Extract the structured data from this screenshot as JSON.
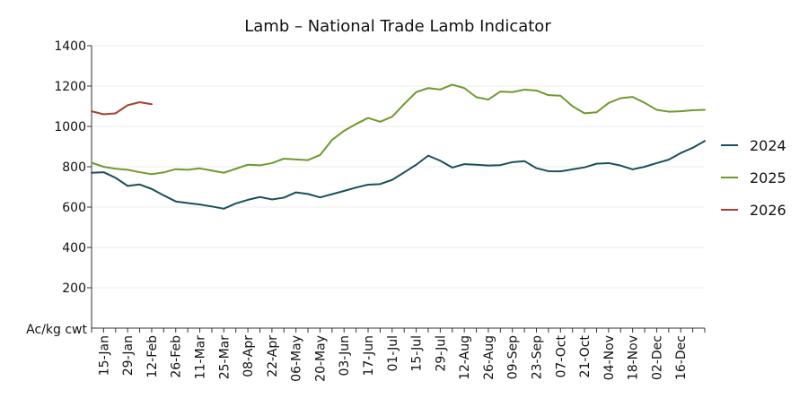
{
  "chart_data": {
    "type": "line",
    "title": "Lamb – National Trade Lamb Indicator",
    "ylabel": "Ac/kg cwt",
    "ylim": [
      0,
      1400
    ],
    "yticks": [
      200,
      400,
      600,
      800,
      1000,
      1200,
      1400
    ],
    "x_categories": [
      "15-Jan",
      "29-Jan",
      "12-Feb",
      "26-Feb",
      "11-Mar",
      "25-Mar",
      "08-Apr",
      "22-Apr",
      "06-May",
      "20-May",
      "03-Jun",
      "17-Jun",
      "01-Jul",
      "15-Jul",
      "29-Jul",
      "12-Aug",
      "26-Aug",
      "09-Sep",
      "23-Sep",
      "07-Oct",
      "21-Oct",
      "04-Nov",
      "18-Nov",
      "02-Dec",
      "16-Dec"
    ],
    "x_week_start": 1,
    "x_week_end": 52,
    "x_tick_weeks": [
      2,
      4,
      6,
      8,
      10,
      12,
      14,
      16,
      18,
      20,
      22,
      24,
      26,
      28,
      30,
      32,
      34,
      36,
      38,
      40,
      42,
      44,
      46,
      48,
      50
    ],
    "legend_position": "right",
    "series": [
      {
        "name": "2024",
        "color": "#1a4f5a",
        "x": [
          1,
          2,
          3,
          4,
          5,
          6,
          7,
          8,
          9,
          10,
          11,
          12,
          13,
          14,
          15,
          16,
          17,
          18,
          19,
          20,
          21,
          22,
          23,
          24,
          25,
          26,
          27,
          28,
          29,
          30,
          31,
          32,
          33,
          34,
          35,
          36,
          37,
          38,
          39,
          40,
          41,
          42,
          43,
          44,
          45,
          46,
          47,
          48,
          49,
          50,
          51,
          52
        ],
        "values": [
          770,
          773,
          745,
          705,
          712,
          690,
          658,
          628,
          620,
          613,
          603,
          592,
          618,
          636,
          650,
          638,
          647,
          673,
          665,
          648,
          664,
          680,
          697,
          711,
          714,
          735,
          772,
          810,
          855,
          830,
          796,
          813,
          810,
          806,
          808,
          823,
          828,
          793,
          778,
          777,
          787,
          797,
          815,
          818,
          806,
          787,
          800,
          818,
          835,
          868,
          894,
          928
        ]
      },
      {
        "name": "2025",
        "color": "#6e9a2e",
        "x": [
          1,
          2,
          3,
          4,
          5,
          6,
          7,
          8,
          9,
          10,
          11,
          12,
          13,
          14,
          15,
          16,
          17,
          18,
          19,
          20,
          21,
          22,
          23,
          24,
          25,
          26,
          27,
          28,
          29,
          30,
          31,
          32,
          33,
          34,
          35,
          36,
          37,
          38,
          39,
          40,
          41,
          42,
          43,
          44,
          45,
          46,
          47,
          48,
          49,
          50,
          51,
          52
        ],
        "values": [
          820,
          800,
          790,
          785,
          773,
          763,
          772,
          788,
          785,
          792,
          781,
          770,
          790,
          810,
          807,
          818,
          840,
          836,
          833,
          858,
          933,
          978,
          1012,
          1042,
          1023,
          1048,
          1111,
          1170,
          1190,
          1183,
          1207,
          1190,
          1145,
          1133,
          1173,
          1170,
          1182,
          1178,
          1155,
          1152,
          1100,
          1065,
          1070,
          1116,
          1140,
          1146,
          1117,
          1082,
          1073,
          1075,
          1080,
          1082
        ]
      },
      {
        "name": "2026",
        "color": "#a5412e",
        "x": [
          1,
          2,
          3,
          4,
          5,
          6
        ],
        "values": [
          1075,
          1060,
          1065,
          1105,
          1120,
          1110
        ]
      }
    ]
  }
}
